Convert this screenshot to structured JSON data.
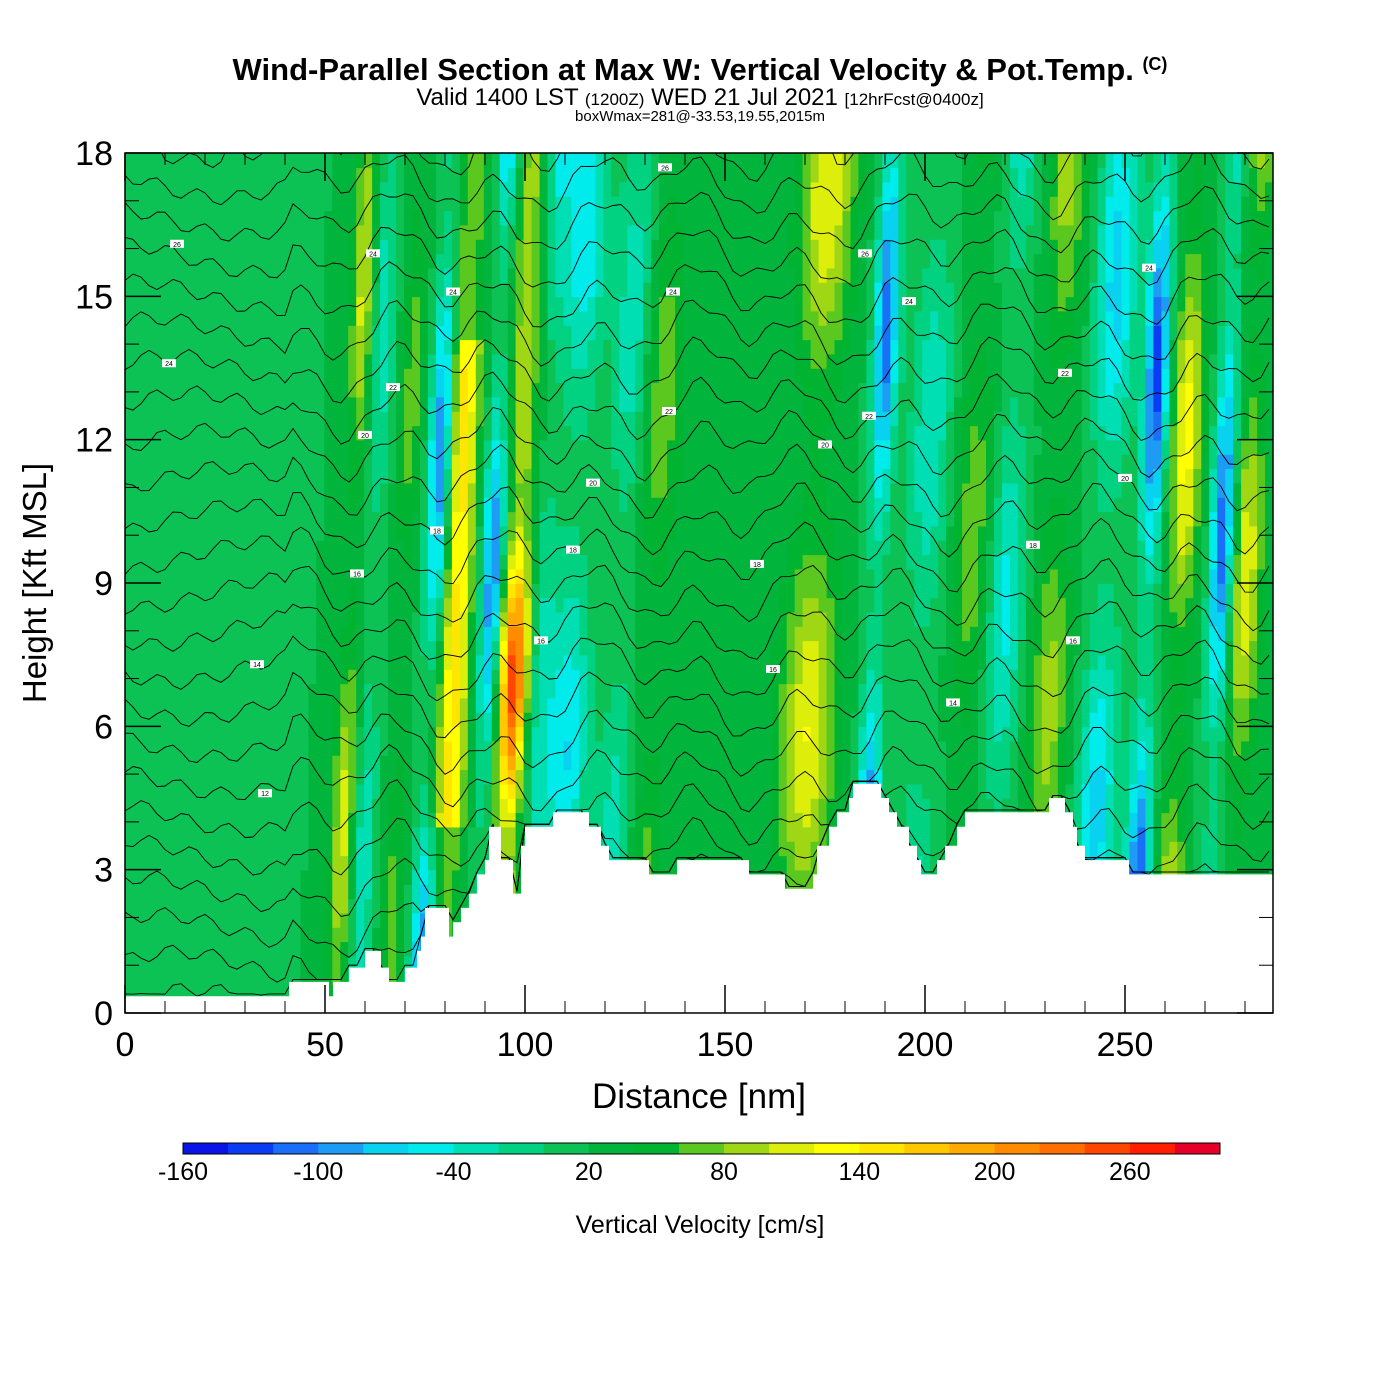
{
  "header": {
    "title": "Wind-Parallel Section at Max W: Vertical Velocity & Pot.Temp.",
    "copyright": "(C)",
    "valid_prefix": "Valid 1400 LST",
    "utc": "(1200Z)",
    "valid_date": "WED 21 Jul 2021",
    "forecast": "[12hrFcst@0400z]",
    "box_info": "boxWmax=281@-33.53,19.55,2015m"
  },
  "chart_data": {
    "type": "heatmap",
    "xlabel": "Distance [nm]",
    "ylabel": "Height [Kft MSL]",
    "xlim": [
      0,
      287
    ],
    "ylim": [
      0,
      18
    ],
    "x_ticks": [
      "0",
      "50",
      "100",
      "150",
      "200",
      "250"
    ],
    "y_ticks": [
      "0",
      "3",
      "6",
      "9",
      "12",
      "15",
      "18"
    ],
    "x_tick_values": [
      0,
      50,
      100,
      150,
      200,
      250
    ],
    "y_tick_values": [
      0,
      3,
      6,
      9,
      12,
      15,
      18
    ],
    "colorbar": {
      "label": "Vertical Velocity [cm/s]",
      "tick_labels": [
        "-160",
        "-100",
        "-40",
        "20",
        "80",
        "140",
        "200",
        "260"
      ],
      "tick_values": [
        -160,
        -100,
        -40,
        20,
        80,
        140,
        200,
        260
      ],
      "levels": [
        -160,
        -140,
        -120,
        -100,
        -80,
        -60,
        -40,
        -20,
        0,
        20,
        40,
        60,
        80,
        100,
        120,
        140,
        160,
        180,
        200,
        220,
        240,
        260,
        280,
        300
      ],
      "colors": [
        "#0a14e6",
        "#0a3cf5",
        "#1a6ef8",
        "#1e9bf5",
        "#08d2f0",
        "#00ecec",
        "#00dfb4",
        "#00d282",
        "#0cc255",
        "#00b43c",
        "#00b432",
        "#5ac81e",
        "#a0d714",
        "#dcee0a",
        "#ffff00",
        "#ffe600",
        "#ffc800",
        "#ffaa00",
        "#ff8c00",
        "#ff6e00",
        "#ff4600",
        "#ff1e00",
        "#e60028"
      ]
    },
    "max_w_cms": 281,
    "max_w_location": {
      "lat": -33.53,
      "lon": 19.55,
      "height_m": 2015
    },
    "w_bands": [
      {
        "x": 20,
        "w": -20,
        "width": 10
      },
      {
        "x": 57,
        "w": 90,
        "width": 3
      },
      {
        "x": 62,
        "w": -60,
        "width": 3
      },
      {
        "x": 70,
        "w": 50,
        "width": 3
      },
      {
        "x": 78,
        "w": -140,
        "width": 3
      },
      {
        "x": 83,
        "w": 130,
        "width": 4
      },
      {
        "x": 92,
        "w": -130,
        "width": 3
      },
      {
        "x": 98,
        "w": 220,
        "width": 4
      },
      {
        "x": 104,
        "w": -60,
        "width": 4
      },
      {
        "x": 112,
        "w": -80,
        "width": 5
      },
      {
        "x": 125,
        "w": -60,
        "width": 5
      },
      {
        "x": 132,
        "w": 60,
        "width": 5
      },
      {
        "x": 150,
        "w": 20,
        "width": 12
      },
      {
        "x": 172,
        "w": 100,
        "width": 7
      },
      {
        "x": 188,
        "w": -130,
        "width": 3
      },
      {
        "x": 200,
        "w": -60,
        "width": 5
      },
      {
        "x": 212,
        "w": 60,
        "width": 5
      },
      {
        "x": 220,
        "w": -70,
        "width": 5
      },
      {
        "x": 232,
        "w": 70,
        "width": 5
      },
      {
        "x": 245,
        "w": -90,
        "width": 5
      },
      {
        "x": 256,
        "w": -150,
        "width": 3
      },
      {
        "x": 264,
        "w": 110,
        "width": 4
      },
      {
        "x": 274,
        "w": -140,
        "width": 3
      },
      {
        "x": 280,
        "w": 100,
        "width": 4
      }
    ],
    "terrain": [
      [
        0,
        0.35
      ],
      [
        40,
        0.35
      ],
      [
        41,
        0.65
      ],
      [
        50,
        0.65
      ],
      [
        51,
        0.35
      ],
      [
        52,
        0.65
      ],
      [
        55,
        0.65
      ],
      [
        56,
        0.95
      ],
      [
        59,
        0.95
      ],
      [
        60,
        1.3
      ],
      [
        63,
        1.3
      ],
      [
        64,
        0.95
      ],
      [
        66,
        0.65
      ],
      [
        69,
        0.65
      ],
      [
        70,
        0.95
      ],
      [
        72,
        0.95
      ],
      [
        73,
        1.3
      ],
      [
        74,
        1.6
      ],
      [
        75,
        2.2
      ],
      [
        80,
        2.2
      ],
      [
        81,
        1.6
      ],
      [
        82,
        1.9
      ],
      [
        84,
        2.2
      ],
      [
        86,
        2.5
      ],
      [
        88,
        2.9
      ],
      [
        90,
        3.2
      ],
      [
        91,
        3.9
      ],
      [
        93,
        3.9
      ],
      [
        94,
        3.2
      ],
      [
        96,
        3.2
      ],
      [
        97,
        2.5
      ],
      [
        98,
        2.5
      ],
      [
        99,
        3.5
      ],
      [
        100,
        3.9
      ],
      [
        106,
        3.9
      ],
      [
        107,
        4.2
      ],
      [
        115,
        4.2
      ],
      [
        116,
        3.9
      ],
      [
        119,
        3.5
      ],
      [
        121,
        3.2
      ],
      [
        130,
        3.2
      ],
      [
        131,
        2.9
      ],
      [
        137,
        2.9
      ],
      [
        138,
        3.2
      ],
      [
        155,
        3.2
      ],
      [
        156,
        2.9
      ],
      [
        164,
        2.9
      ],
      [
        165,
        2.6
      ],
      [
        171,
        2.6
      ],
      [
        172,
        2.9
      ],
      [
        173,
        3.5
      ],
      [
        176,
        3.9
      ],
      [
        178,
        4.2
      ],
      [
        181,
        4.5
      ],
      [
        182,
        4.8
      ],
      [
        188,
        4.8
      ],
      [
        189,
        4.5
      ],
      [
        191,
        4.2
      ],
      [
        193,
        3.9
      ],
      [
        196,
        3.5
      ],
      [
        198,
        3.2
      ],
      [
        199,
        2.9
      ],
      [
        202,
        2.9
      ],
      [
        203,
        3.2
      ],
      [
        205,
        3.5
      ],
      [
        208,
        3.9
      ],
      [
        210,
        4.2
      ],
      [
        229,
        4.2
      ],
      [
        231,
        4.5
      ],
      [
        234,
        4.5
      ],
      [
        235,
        4.2
      ],
      [
        237,
        3.9
      ],
      [
        238,
        3.5
      ],
      [
        240,
        3.2
      ],
      [
        250,
        3.2
      ],
      [
        251,
        2.9
      ],
      [
        287,
        2.9
      ]
    ],
    "isentropes_C": [
      12,
      14,
      16,
      18,
      20,
      22,
      24,
      26
    ],
    "contour_labels": [
      {
        "x": 13,
        "y": 16.1,
        "text": "26"
      },
      {
        "x": 62,
        "y": 15.9,
        "text": "24"
      },
      {
        "x": 82,
        "y": 15.1,
        "text": "24"
      },
      {
        "x": 135,
        "y": 17.7,
        "text": "26"
      },
      {
        "x": 137,
        "y": 15.1,
        "text": "24"
      },
      {
        "x": 185,
        "y": 15.9,
        "text": "26"
      },
      {
        "x": 196,
        "y": 14.9,
        "text": "24"
      },
      {
        "x": 256,
        "y": 15.6,
        "text": "24"
      },
      {
        "x": 11,
        "y": 13.6,
        "text": "24"
      },
      {
        "x": 67,
        "y": 13.1,
        "text": "22"
      },
      {
        "x": 136,
        "y": 12.6,
        "text": "22"
      },
      {
        "x": 186,
        "y": 12.5,
        "text": "22"
      },
      {
        "x": 235,
        "y": 13.4,
        "text": "22"
      },
      {
        "x": 60,
        "y": 12.1,
        "text": "20"
      },
      {
        "x": 175,
        "y": 11.9,
        "text": "20"
      },
      {
        "x": 117,
        "y": 11.1,
        "text": "20"
      },
      {
        "x": 250,
        "y": 11.2,
        "text": "20"
      },
      {
        "x": 78,
        "y": 10.1,
        "text": "18"
      },
      {
        "x": 112,
        "y": 9.7,
        "text": "18"
      },
      {
        "x": 158,
        "y": 9.4,
        "text": "18"
      },
      {
        "x": 227,
        "y": 9.8,
        "text": "18"
      },
      {
        "x": 58,
        "y": 9.2,
        "text": "16"
      },
      {
        "x": 104,
        "y": 7.8,
        "text": "16"
      },
      {
        "x": 162,
        "y": 7.2,
        "text": "16"
      },
      {
        "x": 237,
        "y": 7.8,
        "text": "16"
      },
      {
        "x": 33,
        "y": 7.3,
        "text": "14"
      },
      {
        "x": 207,
        "y": 6.5,
        "text": "14"
      },
      {
        "x": 35,
        "y": 4.6,
        "text": "12"
      }
    ]
  }
}
